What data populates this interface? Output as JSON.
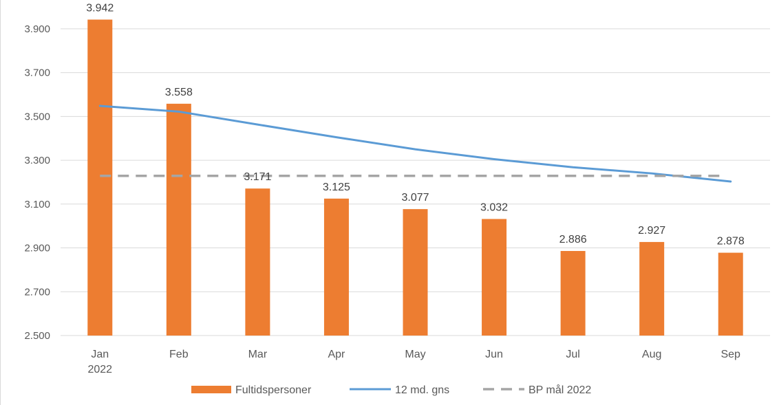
{
  "chart_data": {
    "type": "bar",
    "categories": [
      "Jan 2022",
      "Feb",
      "Mar",
      "Apr",
      "May",
      "Jun",
      "Jul",
      "Aug",
      "Sep"
    ],
    "category_lines": [
      [
        "Jan",
        "2022"
      ],
      [
        "Feb"
      ],
      [
        "Mar"
      ],
      [
        "Apr"
      ],
      [
        "May"
      ],
      [
        "Jun"
      ],
      [
        "Jul"
      ],
      [
        "Aug"
      ],
      [
        "Sep"
      ]
    ],
    "ylim": [
      2500,
      4000
    ],
    "yticks": [
      2500,
      2700,
      2900,
      3100,
      3300,
      3500,
      3700,
      3900
    ],
    "ytick_labels": [
      "2.500",
      "2.700",
      "2.900",
      "3.100",
      "3.300",
      "3.500",
      "3.700",
      "3.900"
    ],
    "grid": true,
    "legend_position": "bottom",
    "series": [
      {
        "name": "Fultidspersoner",
        "kind": "bar",
        "color": "#ed7d31",
        "values": [
          3942,
          3558,
          3171,
          3125,
          3077,
          3032,
          2886,
          2927,
          2878
        ],
        "labels": [
          "3.942",
          "3.558",
          "3.171",
          "3.125",
          "3.077",
          "3.032",
          "2.886",
          "2.927",
          "2.878"
        ]
      },
      {
        "name": "12 md. gns",
        "kind": "line",
        "color": "#5b9bd5",
        "values": [
          3548,
          3522,
          3463,
          3405,
          3350,
          3305,
          3268,
          3240,
          3203
        ]
      },
      {
        "name": "BP mål 2022",
        "kind": "dashed-line",
        "color": "#a5a5a5",
        "values": [
          3229,
          3229,
          3229,
          3229,
          3229,
          3229,
          3229,
          3229,
          3229
        ]
      }
    ]
  }
}
